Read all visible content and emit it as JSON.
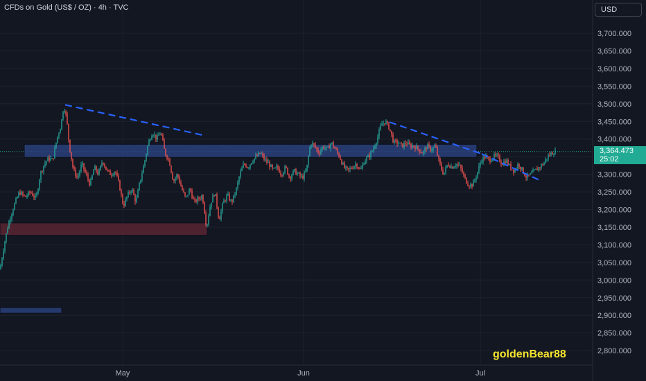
{
  "header": {
    "symbol_title": "CFDs on Gold (US$ / OZ) · 4h · TVC"
  },
  "price_scale": {
    "currency": "USD"
  },
  "last_price": {
    "value": "3,364.473",
    "countdown": "25:02",
    "color": "#22ab94"
  },
  "watermark": {
    "text": "goldenBear88",
    "color": "#f5e52e"
  },
  "colors": {
    "up": "#26a69a",
    "down": "#ef5350",
    "background": "#131722",
    "trendline": "#2962ff"
  },
  "chart_data": {
    "type": "candlestick",
    "timeframe": "4h",
    "y_ticks": [
      "3,700.000",
      "3,650.000",
      "3,600.000",
      "3,550.000",
      "3,500.000",
      "3,450.000",
      "3,400.000",
      "3,350.000",
      "3,300.000",
      "3,250.000",
      "3,200.000",
      "3,150.000",
      "3,100.000",
      "3,050.000",
      "3,000.000",
      "2,950.000",
      "2,900.000",
      "2,850.000",
      "2,800.000"
    ],
    "x_ticks": [
      "May",
      "Jun",
      "Jul"
    ],
    "ylim": [
      2770,
      3735
    ],
    "price_path": [
      [
        0,
        3030
      ],
      [
        6,
        3100
      ],
      [
        12,
        3160
      ],
      [
        20,
        3210
      ],
      [
        28,
        3250
      ],
      [
        36,
        3235
      ],
      [
        44,
        3250
      ],
      [
        52,
        3230
      ],
      [
        58,
        3300
      ],
      [
        64,
        3330
      ],
      [
        70,
        3345
      ],
      [
        76,
        3340
      ],
      [
        82,
        3400
      ],
      [
        88,
        3440
      ],
      [
        92,
        3495
      ],
      [
        96,
        3460
      ],
      [
        100,
        3380
      ],
      [
        106,
        3310
      ],
      [
        112,
        3290
      ],
      [
        118,
        3330
      ],
      [
        124,
        3300
      ],
      [
        130,
        3270
      ],
      [
        136,
        3320
      ],
      [
        142,
        3300
      ],
      [
        148,
        3340
      ],
      [
        154,
        3310
      ],
      [
        160,
        3300
      ],
      [
        166,
        3310
      ],
      [
        172,
        3270
      ],
      [
        178,
        3210
      ],
      [
        184,
        3240
      ],
      [
        190,
        3260
      ],
      [
        196,
        3220
      ],
      [
        202,
        3280
      ],
      [
        208,
        3330
      ],
      [
        214,
        3390
      ],
      [
        220,
        3420
      ],
      [
        226,
        3400
      ],
      [
        232,
        3420
      ],
      [
        238,
        3360
      ],
      [
        244,
        3340
      ],
      [
        250,
        3280
      ],
      [
        256,
        3300
      ],
      [
        262,
        3260
      ],
      [
        268,
        3230
      ],
      [
        274,
        3260
      ],
      [
        280,
        3220
      ],
      [
        286,
        3230
      ],
      [
        292,
        3240
      ],
      [
        298,
        3150
      ],
      [
        304,
        3220
      ],
      [
        310,
        3250
      ],
      [
        316,
        3170
      ],
      [
        322,
        3220
      ],
      [
        328,
        3240
      ],
      [
        334,
        3220
      ],
      [
        340,
        3250
      ],
      [
        346,
        3300
      ],
      [
        352,
        3330
      ],
      [
        358,
        3320
      ],
      [
        364,
        3340
      ],
      [
        370,
        3350
      ],
      [
        376,
        3360
      ],
      [
        382,
        3340
      ],
      [
        388,
        3330
      ],
      [
        394,
        3310
      ],
      [
        400,
        3320
      ],
      [
        406,
        3300
      ],
      [
        412,
        3320
      ],
      [
        418,
        3290
      ],
      [
        424,
        3310
      ],
      [
        430,
        3300
      ],
      [
        436,
        3290
      ],
      [
        442,
        3310
      ],
      [
        448,
        3390
      ],
      [
        454,
        3380
      ],
      [
        460,
        3360
      ],
      [
        466,
        3380
      ],
      [
        472,
        3370
      ],
      [
        478,
        3390
      ],
      [
        484,
        3370
      ],
      [
        490,
        3350
      ],
      [
        496,
        3320
      ],
      [
        502,
        3310
      ],
      [
        508,
        3320
      ],
      [
        514,
        3330
      ],
      [
        520,
        3310
      ],
      [
        526,
        3340
      ],
      [
        532,
        3350
      ],
      [
        538,
        3370
      ],
      [
        544,
        3400
      ],
      [
        550,
        3440
      ],
      [
        556,
        3450
      ],
      [
        562,
        3430
      ],
      [
        568,
        3390
      ],
      [
        574,
        3390
      ],
      [
        580,
        3380
      ],
      [
        586,
        3390
      ],
      [
        592,
        3380
      ],
      [
        598,
        3380
      ],
      [
        604,
        3370
      ],
      [
        610,
        3360
      ],
      [
        616,
        3380
      ],
      [
        622,
        3370
      ],
      [
        628,
        3380
      ],
      [
        634,
        3330
      ],
      [
        640,
        3300
      ],
      [
        646,
        3330
      ],
      [
        652,
        3320
      ],
      [
        658,
        3330
      ],
      [
        664,
        3320
      ],
      [
        670,
        3290
      ],
      [
        676,
        3270
      ],
      [
        682,
        3270
      ],
      [
        688,
        3300
      ],
      [
        694,
        3340
      ],
      [
        700,
        3350
      ],
      [
        706,
        3340
      ],
      [
        712,
        3350
      ],
      [
        718,
        3350
      ],
      [
        724,
        3330
      ],
      [
        730,
        3340
      ],
      [
        736,
        3320
      ],
      [
        742,
        3310
      ],
      [
        748,
        3330
      ],
      [
        754,
        3310
      ],
      [
        760,
        3290
      ],
      [
        766,
        3300
      ],
      [
        772,
        3310
      ],
      [
        778,
        3320
      ],
      [
        784,
        3330
      ],
      [
        790,
        3350
      ],
      [
        796,
        3360
      ],
      [
        802,
        3365
      ]
    ],
    "zones": [
      {
        "name": "resistance",
        "x0": 35,
        "x1": 688,
        "low": 3348,
        "high": 3385,
        "color": "#2a3f7a"
      },
      {
        "name": "support",
        "x0": 0,
        "x1": 299,
        "low": 3127,
        "high": 3162,
        "color": "#5a2432"
      },
      {
        "name": "lower",
        "x0": 0,
        "x1": 89,
        "low": 2906,
        "high": 2922,
        "color": "#2a3f7a"
      }
    ],
    "trendlines": [
      {
        "from": [
          94,
          3497
        ],
        "to": [
          295,
          3410
        ]
      },
      {
        "from": [
          562,
          3448
        ],
        "to": [
          695,
          3358
        ]
      },
      {
        "from": [
          695,
          3358
        ],
        "to": [
          780,
          3282
        ]
      }
    ],
    "last_price_line": 3364.473
  }
}
